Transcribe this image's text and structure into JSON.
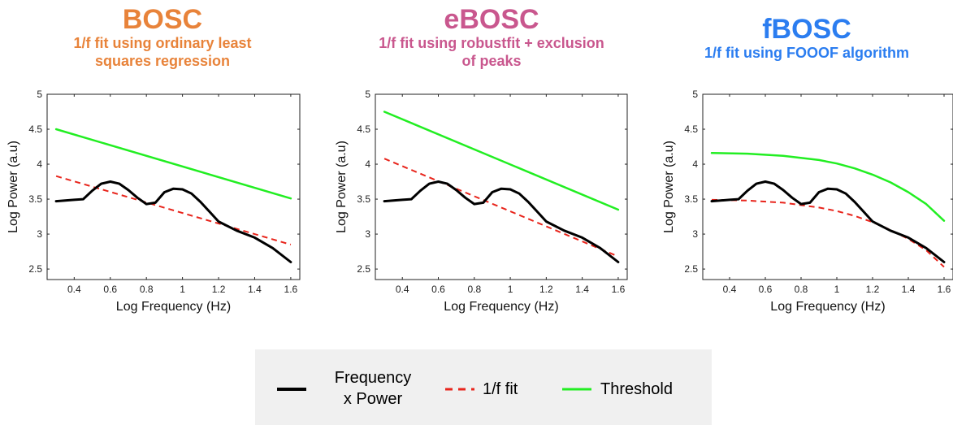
{
  "colors": {
    "bosc": "#e8833a",
    "ebosc": "#c9578e",
    "fbosc": "#2b7df0",
    "spectrum": "#000000",
    "fit": "#e8251c",
    "threshold": "#22ee22"
  },
  "panels": [
    {
      "title": "BOSC",
      "subtitle_lines": [
        "1/f fit using ordinary least",
        "squares regression"
      ]
    },
    {
      "title": "eBOSC",
      "subtitle_lines": [
        "1/f fit using robustfit + exclusion",
        "of peaks"
      ]
    },
    {
      "title": "fBOSC",
      "subtitle_lines": [
        "1/f fit using FOOOF algorithm"
      ]
    }
  ],
  "legend": {
    "spectrum_lines": [
      "Frequency",
      "x Power"
    ],
    "fit": "1/f fit",
    "threshold": "Threshold"
  },
  "chart_data": [
    {
      "type": "line",
      "xlabel": "Log Frequency (Hz)",
      "ylabel": "Log Power (a.u)",
      "xlim": [
        0.25,
        1.65
      ],
      "ylim": [
        2.35,
        5
      ],
      "xticks": [
        "0.4",
        "0.6",
        "0.8",
        "1",
        "1.2",
        "1.4",
        "1.6"
      ],
      "yticks": [
        "2.5",
        "3",
        "3.5",
        "4",
        "4.5",
        "5"
      ],
      "series": [
        {
          "role": "spectrum",
          "x": [
            0.3,
            0.4,
            0.45,
            0.5,
            0.55,
            0.6,
            0.65,
            0.7,
            0.75,
            0.8,
            0.85,
            0.9,
            0.95,
            1.0,
            1.05,
            1.1,
            1.15,
            1.2,
            1.3,
            1.4,
            1.5,
            1.6
          ],
          "y": [
            3.47,
            3.49,
            3.5,
            3.62,
            3.72,
            3.75,
            3.72,
            3.63,
            3.52,
            3.43,
            3.45,
            3.6,
            3.65,
            3.64,
            3.58,
            3.46,
            3.32,
            3.18,
            3.05,
            2.95,
            2.8,
            2.6
          ]
        },
        {
          "role": "fit",
          "x": [
            0.3,
            1.6
          ],
          "y": [
            3.83,
            2.85
          ]
        },
        {
          "role": "threshold",
          "x": [
            0.3,
            1.6
          ],
          "y": [
            4.5,
            3.51
          ]
        }
      ]
    },
    {
      "type": "line",
      "xlabel": "Log Frequency (Hz)",
      "ylabel": "Log Power (a.u)",
      "xlim": [
        0.25,
        1.65
      ],
      "ylim": [
        2.35,
        5
      ],
      "xticks": [
        "0.4",
        "0.6",
        "0.8",
        "1",
        "1.2",
        "1.4",
        "1.6"
      ],
      "yticks": [
        "2.5",
        "3",
        "3.5",
        "4",
        "4.5",
        "5"
      ],
      "series": [
        {
          "role": "spectrum",
          "x": [
            0.3,
            0.4,
            0.45,
            0.5,
            0.55,
            0.6,
            0.65,
            0.7,
            0.75,
            0.8,
            0.85,
            0.9,
            0.95,
            1.0,
            1.05,
            1.1,
            1.15,
            1.2,
            1.3,
            1.4,
            1.5,
            1.6
          ],
          "y": [
            3.47,
            3.49,
            3.5,
            3.62,
            3.72,
            3.75,
            3.72,
            3.63,
            3.52,
            3.43,
            3.45,
            3.6,
            3.65,
            3.64,
            3.58,
            3.46,
            3.32,
            3.18,
            3.05,
            2.95,
            2.8,
            2.6
          ]
        },
        {
          "role": "fit",
          "x": [
            0.3,
            1.6
          ],
          "y": [
            4.08,
            2.68
          ]
        },
        {
          "role": "threshold",
          "x": [
            0.3,
            1.6
          ],
          "y": [
            4.75,
            3.35
          ]
        }
      ]
    },
    {
      "type": "line",
      "xlabel": "Log Frequency (Hz)",
      "ylabel": "Log Power (a.u)",
      "xlim": [
        0.25,
        1.65
      ],
      "ylim": [
        2.35,
        5
      ],
      "xticks": [
        "0.4",
        "0.6",
        "0.8",
        "1",
        "1.2",
        "1.4",
        "1.6"
      ],
      "yticks": [
        "2.5",
        "3",
        "3.5",
        "4",
        "4.5",
        "5"
      ],
      "series": [
        {
          "role": "spectrum",
          "x": [
            0.3,
            0.4,
            0.45,
            0.5,
            0.55,
            0.6,
            0.65,
            0.7,
            0.75,
            0.8,
            0.85,
            0.9,
            0.95,
            1.0,
            1.05,
            1.1,
            1.15,
            1.2,
            1.3,
            1.4,
            1.5,
            1.6
          ],
          "y": [
            3.47,
            3.49,
            3.5,
            3.62,
            3.72,
            3.75,
            3.72,
            3.63,
            3.52,
            3.43,
            3.45,
            3.6,
            3.65,
            3.64,
            3.58,
            3.46,
            3.32,
            3.18,
            3.05,
            2.95,
            2.8,
            2.6
          ]
        },
        {
          "role": "fit",
          "x": [
            0.3,
            0.5,
            0.7,
            0.9,
            1.0,
            1.1,
            1.2,
            1.3,
            1.4,
            1.5,
            1.6
          ],
          "y": [
            3.49,
            3.48,
            3.45,
            3.38,
            3.33,
            3.26,
            3.17,
            3.06,
            2.93,
            2.77,
            2.53
          ]
        },
        {
          "role": "threshold",
          "x": [
            0.3,
            0.5,
            0.7,
            0.9,
            1.0,
            1.1,
            1.2,
            1.3,
            1.4,
            1.5,
            1.6
          ],
          "y": [
            4.16,
            4.15,
            4.12,
            4.06,
            4.01,
            3.94,
            3.85,
            3.74,
            3.6,
            3.43,
            3.19
          ]
        }
      ]
    }
  ]
}
